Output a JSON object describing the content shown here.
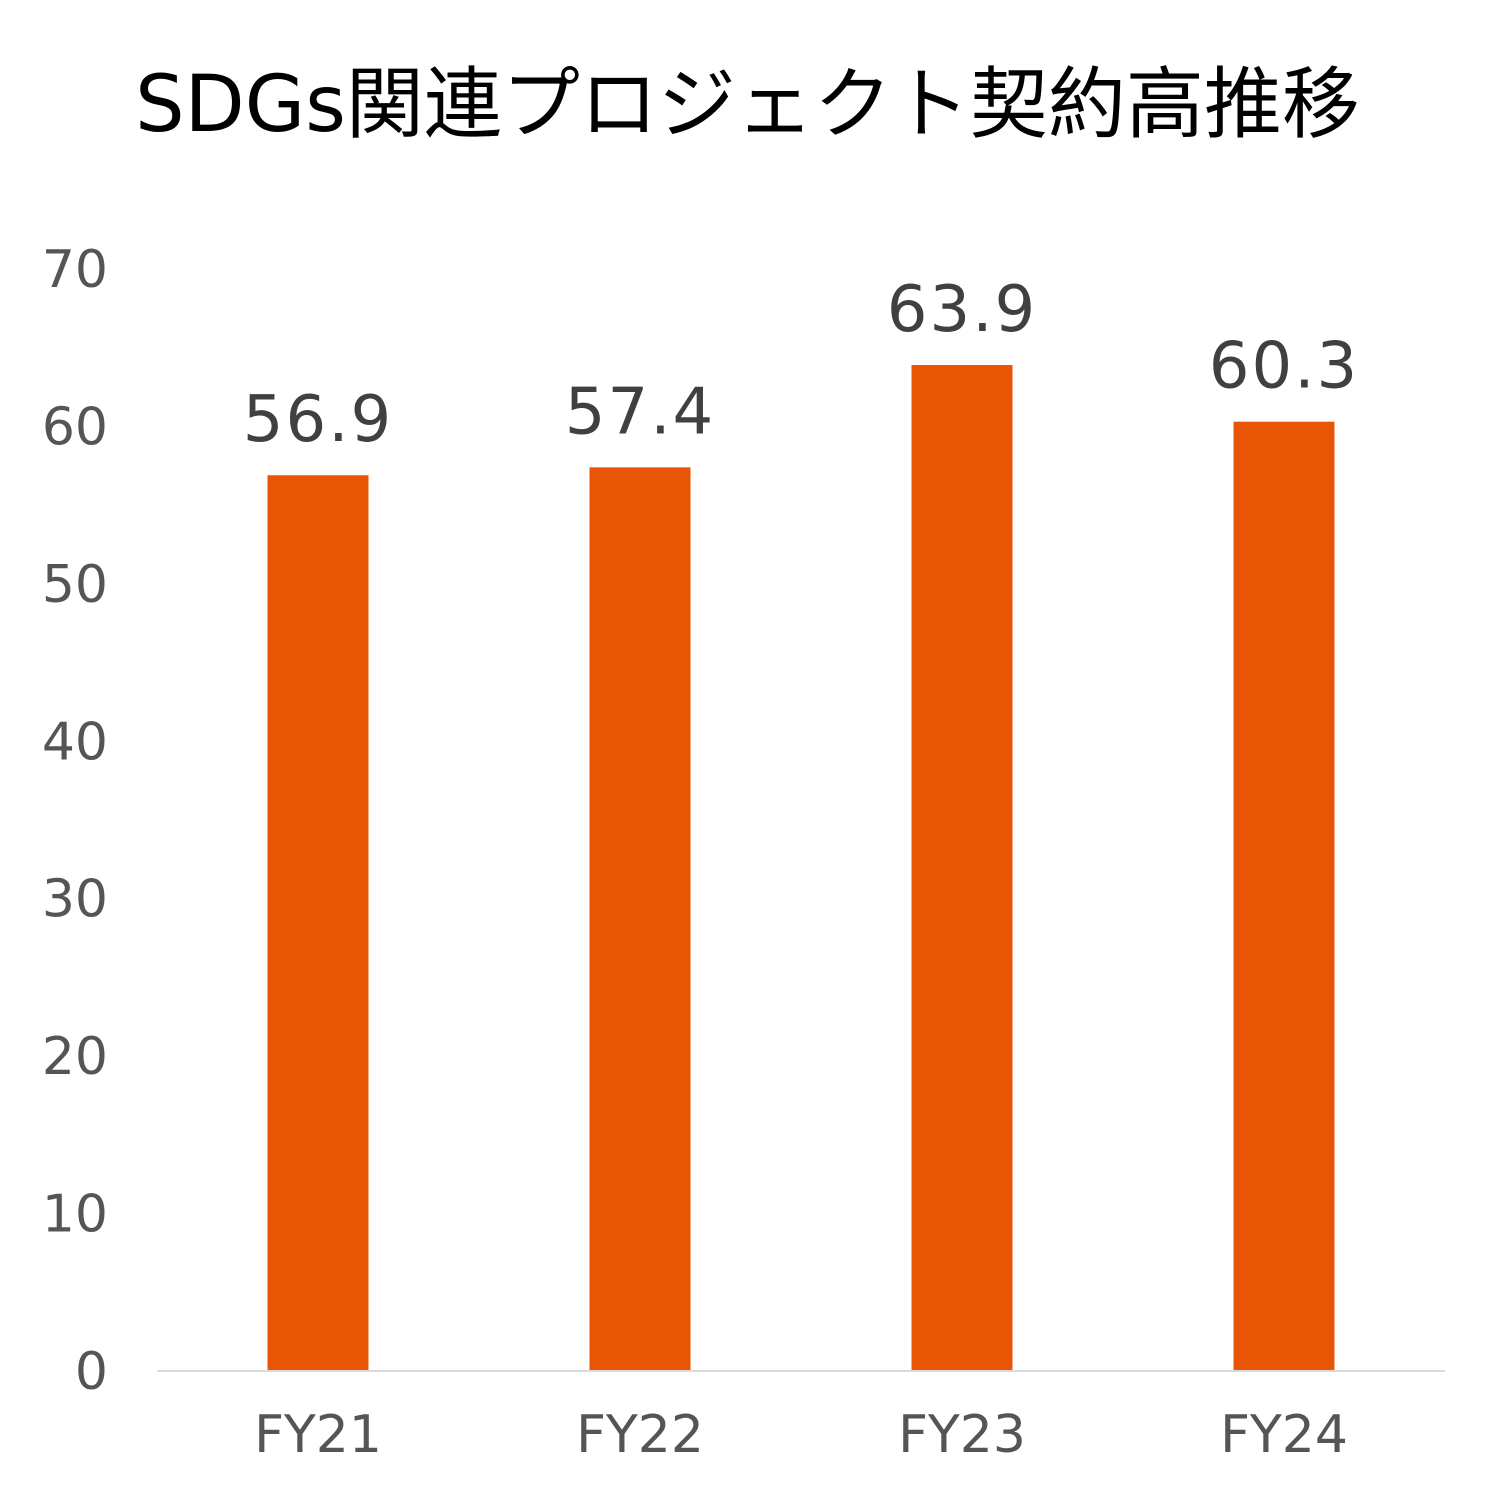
{
  "chart_data": {
    "type": "bar",
    "title": "SDGs関連プロジェクト契約高推移",
    "categories": [
      "FY21",
      "FY22",
      "FY23",
      "FY24"
    ],
    "values": [
      56.9,
      57.4,
      63.9,
      60.3
    ],
    "data_labels": [
      "56.9",
      "57.4",
      "63.9",
      "60.3"
    ],
    "y_ticks": [
      "0",
      "10",
      "20",
      "30",
      "40",
      "50",
      "60",
      "70"
    ],
    "xlabel": "",
    "ylabel": "",
    "ylim": [
      0,
      70
    ],
    "grid": false,
    "legend": "none",
    "colors": {
      "bar": "#E85505",
      "axis": "#D9D9D9",
      "tick_text": "#555555",
      "label_text": "#404040",
      "title_text": "#000000"
    }
  }
}
